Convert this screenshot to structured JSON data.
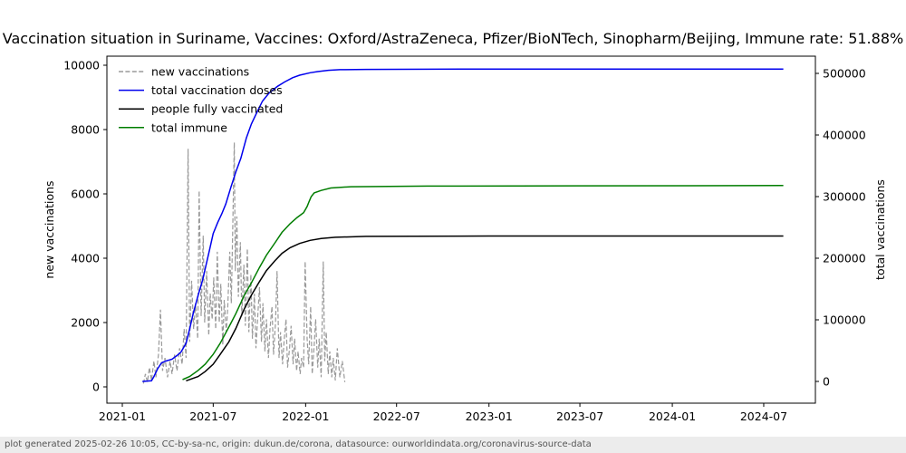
{
  "title": "Vaccination situation in Suriname, Vaccines: Oxford/AstraZeneca, Pfizer/BioNTech, Sinopharm/Beijing, Immune rate: 51.88%",
  "footer": "plot generated 2025-02-26 10:05, CC-by-sa-nc, origin: dukun.de/corona, datasource: ourworldindata.org/coronavirus-source-data",
  "chart_data": {
    "type": "line",
    "title": "Vaccination situation in Suriname",
    "x_axis": {
      "epoch": "2021-01-01",
      "tick_labels": [
        "2021-01",
        "2021-07",
        "2022-01",
        "2022-07",
        "2023-01",
        "2023-07",
        "2024-01",
        "2024-07"
      ]
    },
    "y_left": {
      "label": "new vaccinations",
      "ticks": [
        0,
        2000,
        4000,
        6000,
        8000,
        10000
      ],
      "range": [
        0,
        10000
      ]
    },
    "y_right": {
      "label": "total vaccinations",
      "ticks": [
        0,
        100000,
        200000,
        300000,
        400000,
        500000
      ],
      "range": [
        0,
        500000
      ]
    },
    "legend_position": "upper-left",
    "grid": false,
    "series": [
      {
        "name": "new vaccinations",
        "axis": "left",
        "color": "#9a9a9a",
        "dash": true,
        "points": [
          [
            "2021-02-12",
            100
          ],
          [
            "2021-02-16",
            400
          ],
          [
            "2021-02-20",
            150
          ],
          [
            "2021-02-24",
            600
          ],
          [
            "2021-02-28",
            200
          ],
          [
            "2021-03-05",
            800
          ],
          [
            "2021-03-09",
            300
          ],
          [
            "2021-03-14",
            1000
          ],
          [
            "2021-03-18",
            2400
          ],
          [
            "2021-03-22",
            500
          ],
          [
            "2021-03-27",
            900
          ],
          [
            "2021-04-01",
            300
          ],
          [
            "2021-04-06",
            800
          ],
          [
            "2021-04-10",
            400
          ],
          [
            "2021-04-15",
            1000
          ],
          [
            "2021-04-20",
            500
          ],
          [
            "2021-04-25",
            1200
          ],
          [
            "2021-04-30",
            700
          ],
          [
            "2021-05-04",
            1800
          ],
          [
            "2021-05-08",
            900
          ],
          [
            "2021-05-12",
            7400
          ],
          [
            "2021-05-15",
            1400
          ],
          [
            "2021-05-19",
            3300
          ],
          [
            "2021-05-23",
            1800
          ],
          [
            "2021-05-27",
            2600
          ],
          [
            "2021-05-31",
            1500
          ],
          [
            "2021-06-03",
            6100
          ],
          [
            "2021-06-07",
            2200
          ],
          [
            "2021-06-11",
            4700
          ],
          [
            "2021-06-14",
            2000
          ],
          [
            "2021-06-18",
            3600
          ],
          [
            "2021-06-22",
            1600
          ],
          [
            "2021-06-25",
            2900
          ],
          [
            "2021-06-29",
            2100
          ],
          [
            "2021-07-02",
            3400
          ],
          [
            "2021-07-06",
            1800
          ],
          [
            "2021-07-09",
            4200
          ],
          [
            "2021-07-13",
            2000
          ],
          [
            "2021-07-16",
            3200
          ],
          [
            "2021-07-20",
            1300
          ],
          [
            "2021-07-23",
            2700
          ],
          [
            "2021-07-27",
            1700
          ],
          [
            "2021-07-30",
            2500
          ],
          [
            "2021-08-03",
            4200
          ],
          [
            "2021-08-06",
            2600
          ],
          [
            "2021-08-09",
            5100
          ],
          [
            "2021-08-12",
            7600
          ],
          [
            "2021-08-14",
            3600
          ],
          [
            "2021-08-17",
            5300
          ],
          [
            "2021-08-20",
            2800
          ],
          [
            "2021-08-24",
            4500
          ],
          [
            "2021-08-27",
            2200
          ],
          [
            "2021-08-31",
            3800
          ],
          [
            "2021-09-03",
            1900
          ],
          [
            "2021-09-07",
            4300
          ],
          [
            "2021-09-10",
            1700
          ],
          [
            "2021-09-14",
            3500
          ],
          [
            "2021-09-17",
            1500
          ],
          [
            "2021-09-21",
            2900
          ],
          [
            "2021-09-24",
            1200
          ],
          [
            "2021-09-28",
            2300
          ],
          [
            "2021-10-01",
            3100
          ],
          [
            "2021-10-05",
            1400
          ],
          [
            "2021-10-08",
            2600
          ],
          [
            "2021-10-12",
            1100
          ],
          [
            "2021-10-15",
            2100
          ],
          [
            "2021-10-19",
            900
          ],
          [
            "2021-10-22",
            1800
          ],
          [
            "2021-10-26",
            2500
          ],
          [
            "2021-10-29",
            1000
          ],
          [
            "2021-11-02",
            2000
          ],
          [
            "2021-11-05",
            3600
          ],
          [
            "2021-11-09",
            900
          ],
          [
            "2021-11-12",
            1700
          ],
          [
            "2021-11-16",
            700
          ],
          [
            "2021-11-19",
            1400
          ],
          [
            "2021-11-23",
            2100
          ],
          [
            "2021-11-26",
            600
          ],
          [
            "2021-11-30",
            1200
          ],
          [
            "2021-12-03",
            1900
          ],
          [
            "2021-12-07",
            700
          ],
          [
            "2021-12-10",
            1500
          ],
          [
            "2021-12-14",
            500
          ],
          [
            "2021-12-17",
            1100
          ],
          [
            "2021-12-21",
            400
          ],
          [
            "2021-12-24",
            900
          ],
          [
            "2021-12-28",
            600
          ],
          [
            "2021-12-31",
            3900
          ],
          [
            "2022-01-04",
            1500
          ],
          [
            "2022-01-07",
            700
          ],
          [
            "2022-01-11",
            2500
          ],
          [
            "2022-01-14",
            400
          ],
          [
            "2022-01-18",
            1300
          ],
          [
            "2022-01-21",
            2100
          ],
          [
            "2022-01-25",
            600
          ],
          [
            "2022-01-28",
            1500
          ],
          [
            "2022-02-01",
            300
          ],
          [
            "2022-02-05",
            3900
          ],
          [
            "2022-02-08",
            800
          ],
          [
            "2022-02-11",
            1700
          ],
          [
            "2022-02-15",
            400
          ],
          [
            "2022-02-18",
            1100
          ],
          [
            "2022-02-22",
            300
          ],
          [
            "2022-02-25",
            900
          ],
          [
            "2022-03-01",
            200
          ],
          [
            "2022-03-05",
            1200
          ],
          [
            "2022-03-10",
            300
          ],
          [
            "2022-03-15",
            800
          ],
          [
            "2022-03-20",
            150
          ]
        ]
      },
      {
        "name": "total vaccination doses",
        "axis": "right",
        "color": "#0000ee",
        "dash": false,
        "points": [
          [
            "2021-02-10",
            0
          ],
          [
            "2021-02-28",
            1000
          ],
          [
            "2021-03-05",
            8000
          ],
          [
            "2021-03-12",
            20000
          ],
          [
            "2021-03-20",
            30000
          ],
          [
            "2021-03-28",
            33000
          ],
          [
            "2021-04-10",
            36000
          ],
          [
            "2021-04-20",
            42000
          ],
          [
            "2021-04-28",
            48000
          ],
          [
            "2021-05-08",
            62000
          ],
          [
            "2021-05-15",
            85000
          ],
          [
            "2021-05-22",
            110000
          ],
          [
            "2021-06-01",
            140000
          ],
          [
            "2021-06-10",
            165000
          ],
          [
            "2021-06-17",
            190000
          ],
          [
            "2021-06-24",
            215000
          ],
          [
            "2021-07-01",
            240000
          ],
          [
            "2021-07-10",
            258000
          ],
          [
            "2021-07-18",
            272000
          ],
          [
            "2021-07-26",
            288000
          ],
          [
            "2021-08-05",
            315000
          ],
          [
            "2021-08-15",
            340000
          ],
          [
            "2021-08-25",
            362000
          ],
          [
            "2021-09-05",
            395000
          ],
          [
            "2021-09-15",
            418000
          ],
          [
            "2021-09-25",
            435000
          ],
          [
            "2021-10-07",
            455000
          ],
          [
            "2021-10-20",
            468000
          ],
          [
            "2021-11-06",
            479000
          ],
          [
            "2021-11-20",
            486000
          ],
          [
            "2021-12-06",
            493000
          ],
          [
            "2021-12-20",
            497000
          ],
          [
            "2022-01-10",
            501000
          ],
          [
            "2022-01-25",
            503000
          ],
          [
            "2022-02-15",
            505000
          ],
          [
            "2022-03-10",
            506000
          ],
          [
            "2022-05-01",
            506500
          ],
          [
            "2023-01-01",
            507000
          ],
          [
            "2024-08-09",
            507000
          ]
        ]
      },
      {
        "name": "people fully vaccinated",
        "axis": "right",
        "color": "#000000",
        "dash": false,
        "points": [
          [
            "2021-05-08",
            1000
          ],
          [
            "2021-06-01",
            8000
          ],
          [
            "2021-06-15",
            16000
          ],
          [
            "2021-07-01",
            28000
          ],
          [
            "2021-07-15",
            44000
          ],
          [
            "2021-08-01",
            64000
          ],
          [
            "2021-08-15",
            86000
          ],
          [
            "2021-09-01",
            118000
          ],
          [
            "2021-09-15",
            140000
          ],
          [
            "2021-10-01",
            162000
          ],
          [
            "2021-10-15",
            180000
          ],
          [
            "2021-11-01",
            196000
          ],
          [
            "2021-11-15",
            208000
          ],
          [
            "2021-12-01",
            217000
          ],
          [
            "2021-12-20",
            224000
          ],
          [
            "2022-01-10",
            229000
          ],
          [
            "2022-02-01",
            232000
          ],
          [
            "2022-03-01",
            234000
          ],
          [
            "2022-05-01",
            235500
          ],
          [
            "2023-01-01",
            236000
          ],
          [
            "2024-08-09",
            236000
          ]
        ]
      },
      {
        "name": "total immune",
        "axis": "right",
        "color": "#007d00",
        "dash": false,
        "points": [
          [
            "2021-05-01",
            3000
          ],
          [
            "2021-05-15",
            8000
          ],
          [
            "2021-06-01",
            18000
          ],
          [
            "2021-06-15",
            28000
          ],
          [
            "2021-07-01",
            44000
          ],
          [
            "2021-07-15",
            62000
          ],
          [
            "2021-08-01",
            88000
          ],
          [
            "2021-08-15",
            110000
          ],
          [
            "2021-09-01",
            140000
          ],
          [
            "2021-09-15",
            160000
          ],
          [
            "2021-10-01",
            185000
          ],
          [
            "2021-10-15",
            205000
          ],
          [
            "2021-11-01",
            225000
          ],
          [
            "2021-11-15",
            242000
          ],
          [
            "2021-12-01",
            256000
          ],
          [
            "2021-12-15",
            266000
          ],
          [
            "2021-12-28",
            274000
          ],
          [
            "2022-01-04",
            284000
          ],
          [
            "2022-01-08",
            292000
          ],
          [
            "2022-01-12",
            300000
          ],
          [
            "2022-01-18",
            306000
          ],
          [
            "2022-02-01",
            310000
          ],
          [
            "2022-02-20",
            314000
          ],
          [
            "2022-04-01",
            316000
          ],
          [
            "2022-09-01",
            317000
          ],
          [
            "2024-08-09",
            318000
          ]
        ]
      }
    ]
  }
}
